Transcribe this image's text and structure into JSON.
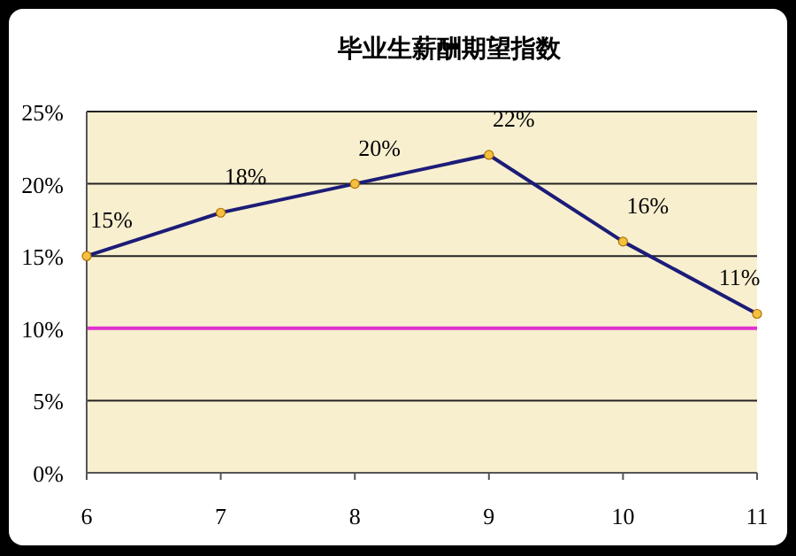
{
  "chart_data": {
    "type": "line",
    "title": "毕业生薪酬期望指数",
    "categories": [
      "6",
      "7",
      "8",
      "9",
      "10",
      "11"
    ],
    "series": [
      {
        "color": "#1c1c78",
        "values": [
          15,
          18,
          20,
          22,
          16,
          11
        ],
        "value_labels": [
          "15%",
          "18%",
          "20%",
          "22%",
          "16%",
          "11%"
        ]
      }
    ],
    "ylim": [
      0,
      25
    ],
    "yticks": [
      {
        "value": 0,
        "label": "0%"
      },
      {
        "value": 5,
        "label": "5%"
      },
      {
        "value": 10,
        "label": "10%"
      },
      {
        "value": 15,
        "label": "15%"
      },
      {
        "value": 20,
        "label": "20%"
      },
      {
        "value": 25,
        "label": "25%"
      }
    ],
    "grid": "y",
    "marker": "circle",
    "ref_lines": [
      {
        "axis": "y",
        "value": 10,
        "color": "#e030d0"
      }
    ]
  }
}
